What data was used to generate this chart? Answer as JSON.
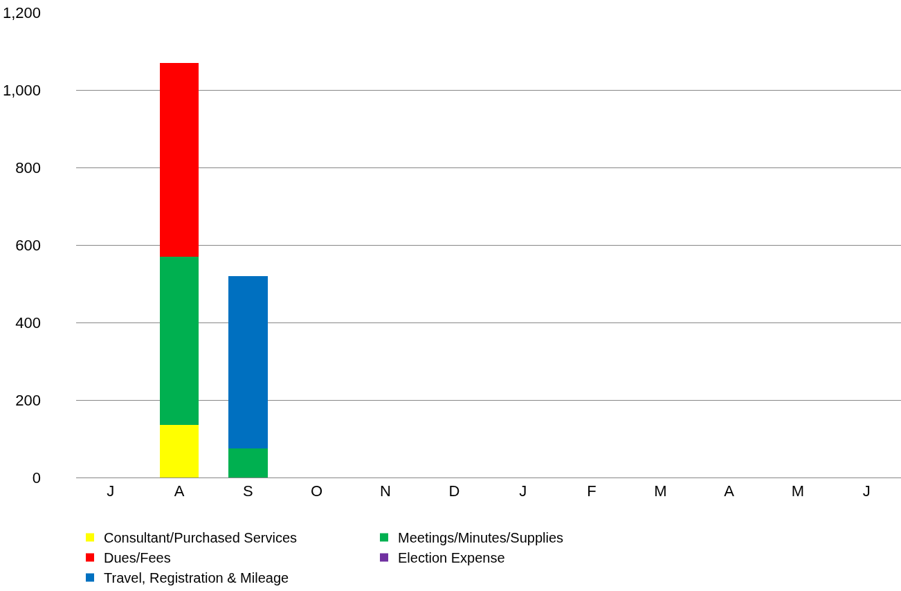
{
  "chart_data": {
    "type": "bar",
    "stacked": true,
    "categories": [
      "J",
      "A",
      "S",
      "O",
      "N",
      "D",
      "J",
      "F",
      "M",
      "A",
      "M",
      "J"
    ],
    "series": [
      {
        "name": "Consultant/Purchased Services",
        "color": "#ffff00",
        "values": [
          null,
          135,
          null,
          null,
          null,
          null,
          null,
          null,
          null,
          null,
          null,
          null
        ]
      },
      {
        "name": "Meetings/Minutes/Supplies",
        "color": "#00b050",
        "values": [
          null,
          435,
          75,
          null,
          null,
          null,
          null,
          null,
          null,
          null,
          null,
          null
        ]
      },
      {
        "name": "Dues/Fees",
        "color": "#ff0000",
        "values": [
          null,
          500,
          null,
          null,
          null,
          null,
          null,
          null,
          null,
          null,
          null,
          null
        ]
      },
      {
        "name": "Election Expense",
        "color": "#7030a0",
        "values": [
          null,
          null,
          null,
          null,
          null,
          null,
          null,
          null,
          null,
          null,
          null,
          null
        ]
      },
      {
        "name": "Travel, Registration & Mileage",
        "color": "#0070c0",
        "values": [
          null,
          null,
          445,
          null,
          null,
          null,
          null,
          null,
          null,
          null,
          null,
          null
        ]
      }
    ],
    "ylim": [
      0,
      1200
    ],
    "yticks": [
      {
        "value": 0,
        "label": "0"
      },
      {
        "value": 200,
        "label": "200"
      },
      {
        "value": 400,
        "label": "400"
      },
      {
        "value": 600,
        "label": "600"
      },
      {
        "value": 800,
        "label": "800"
      },
      {
        "value": 1000,
        "label": "1,000"
      },
      {
        "value": 1200,
        "label": "1,200"
      }
    ],
    "grid": "y",
    "legend": "bottom"
  }
}
